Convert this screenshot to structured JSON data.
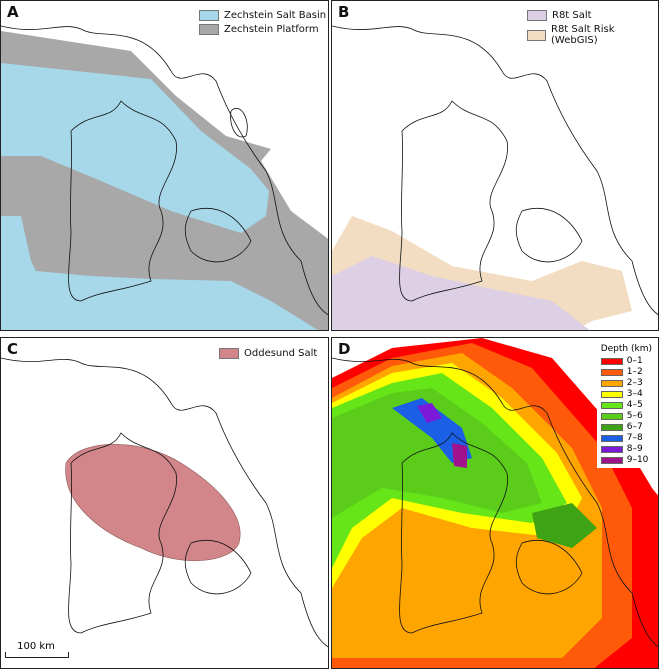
{
  "panels": {
    "a": {
      "label": "A",
      "legend": [
        {
          "label": "Zechstein Salt Basin",
          "color": "#a6d8ea"
        },
        {
          "label": "Zechstein Platform",
          "color": "#a8a8a8"
        }
      ]
    },
    "b": {
      "label": "B",
      "legend": [
        {
          "label": "R8t Salt",
          "color": "#ddd0e5"
        },
        {
          "label": "R8t Salt Risk (WebGIS)",
          "color": "#f2ddc2"
        }
      ]
    },
    "c": {
      "label": "C",
      "legend": [
        {
          "label": "Oddesund Salt",
          "color": "#d3868a"
        }
      ],
      "scale_bar": "100 km"
    },
    "d": {
      "label": "D",
      "legend_title": "Depth (km)",
      "legend": [
        {
          "label": "0–1",
          "color": "#ff0000"
        },
        {
          "label": "1–2",
          "color": "#ff5a0a"
        },
        {
          "label": "2–3",
          "color": "#ffa500"
        },
        {
          "label": "3–4",
          "color": "#ffff00"
        },
        {
          "label": "4–5",
          "color": "#66e619"
        },
        {
          "label": "5–6",
          "color": "#5ccc1a"
        },
        {
          "label": "6–7",
          "color": "#3ea315"
        },
        {
          "label": "7–8",
          "color": "#1a5fe6"
        },
        {
          "label": "8–9",
          "color": "#7a1ad6"
        },
        {
          "label": "9–10",
          "color": "#a0128c"
        }
      ]
    }
  }
}
